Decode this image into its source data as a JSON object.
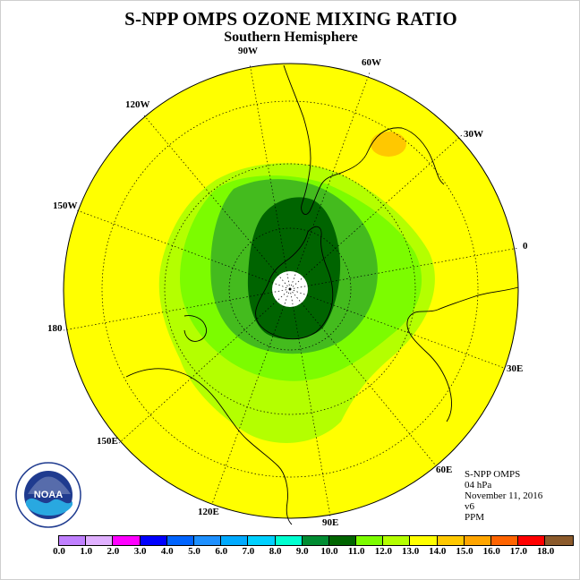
{
  "title": "S-NPP OMPS OZONE MIXING RATIO",
  "subtitle": "Southern Hemisphere",
  "longitude_labels": {
    "w90": "90W",
    "w60": "60W",
    "w30": "30W",
    "w120": "120W",
    "w150": "150W",
    "zero": "0",
    "d180": "180",
    "e30": "30E",
    "e60": "60E",
    "e150": "150E",
    "e120": "120E",
    "e90": "90E"
  },
  "info": {
    "instrument": "S-NPP OMPS",
    "level": "04 hPa",
    "date": "November 11, 2016",
    "version": "v6",
    "units": "PPM"
  },
  "colorbar": {
    "ticks": [
      "0.0",
      "1.0",
      "2.0",
      "3.0",
      "4.0",
      "5.0",
      "6.0",
      "7.0",
      "8.0",
      "9.0",
      "10.0",
      "11.0",
      "12.0",
      "13.0",
      "14.0",
      "15.0",
      "16.0",
      "17.0",
      "18.0"
    ],
    "colors": [
      "#c080ff",
      "#e0b0ff",
      "#ff00ff",
      "#0000ff",
      "#0064ff",
      "#1e90ff",
      "#00aaff",
      "#00d0ff",
      "#00ffd0",
      "#008c32",
      "#006400",
      "#7cfc00",
      "#b4ff00",
      "#ffff00",
      "#ffc800",
      "#ffa500",
      "#ff6400",
      "#ff0000",
      "#8b5a2b"
    ]
  },
  "chart_data": {
    "type": "heatmap",
    "projection": "south polar stereographic",
    "field": "ozone mixing ratio at 4 hPa",
    "units": "PPM",
    "color_range": [
      0,
      18
    ],
    "contour_step": 1.0,
    "background_level": "13.0-14.0",
    "regions": [
      {
        "name": "outer-band",
        "range": "13.0-14.0",
        "color": "#ffff00"
      },
      {
        "name": "light-green-ring",
        "range": "12.0-13.0",
        "color": "#b4ff00"
      },
      {
        "name": "green-ring",
        "range": "11.0-12.0",
        "color": "#7cfc00"
      },
      {
        "name": "medium-green-ring",
        "range": "10.0-11.0",
        "color": "#44bb1e"
      },
      {
        "name": "dark-green-core",
        "range": "9.0-10.0",
        "color": "#006400"
      },
      {
        "name": "orange-spot-near-30W",
        "range": "14.0-15.0",
        "color": "#ffc800"
      }
    ]
  },
  "logo_name": "NOAA"
}
